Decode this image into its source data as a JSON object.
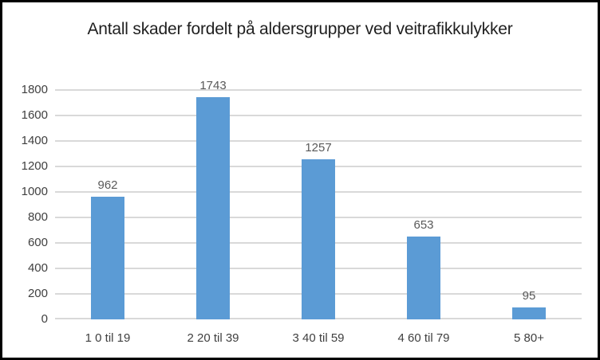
{
  "chart_data": {
    "type": "bar",
    "title": "Antall skader fordelt på aldersgrupper ved veitrafikkulykker",
    "categories": [
      "1 0 til 19",
      "2 20 til 39",
      "3 40 til 59",
      "4 60 til 79",
      "5 80+"
    ],
    "values": [
      962,
      1743,
      1257,
      653,
      95
    ],
    "data_labels": [
      "962",
      "1743",
      "1257",
      "653",
      "95"
    ],
    "xlabel": "",
    "ylabel": "",
    "ylim": [
      0,
      1800
    ],
    "y_ticks": [
      0,
      200,
      400,
      600,
      800,
      1000,
      1200,
      1400,
      1600,
      1800
    ],
    "grid": true,
    "legend": false,
    "colors": {
      "bar": "#5B9BD5",
      "gridline": "#D9D9D9",
      "axis_label": "#404040",
      "data_label": "#595959",
      "title": "#1f1f1f",
      "frame_border": "#000000"
    }
  }
}
